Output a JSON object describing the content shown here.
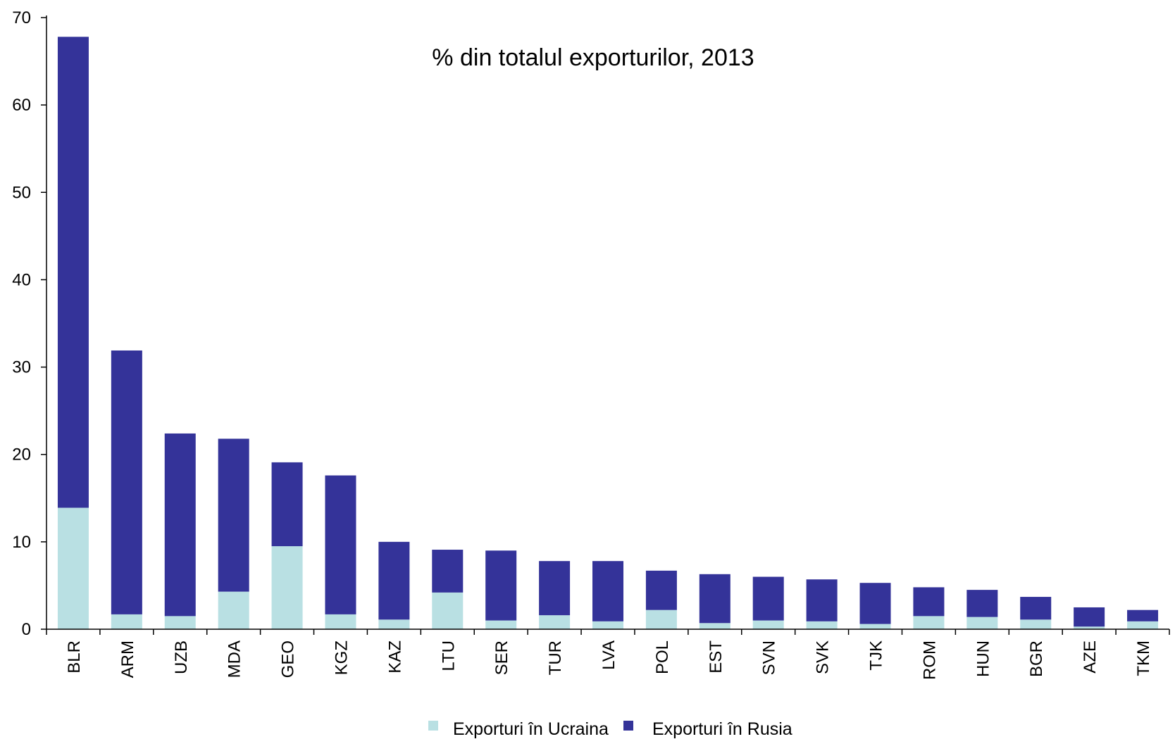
{
  "chart_data": {
    "type": "bar",
    "stacked": true,
    "title": "% din totalul exporturilor, 2013",
    "xlabel": "",
    "ylabel": "",
    "ylim": [
      0,
      70
    ],
    "yticks": [
      0,
      10,
      20,
      30,
      40,
      50,
      60,
      70
    ],
    "grid": false,
    "legend_position": "bottom",
    "categories": [
      "BLR",
      "ARM",
      "UZB",
      "MDA",
      "GEO",
      "KGZ",
      "KAZ",
      "LTU",
      "SER",
      "TUR",
      "LVA",
      "POL",
      "EST",
      "SVN",
      "SVK",
      "TJK",
      "ROM",
      "HUN",
      "BGR",
      "AZE",
      "TKM"
    ],
    "series": [
      {
        "name": "Exporturi în Ucraina",
        "color": "#b9e0e3",
        "values": [
          13.9,
          1.7,
          1.5,
          4.3,
          9.5,
          1.7,
          1.1,
          4.2,
          1.0,
          1.6,
          0.9,
          2.2,
          0.7,
          1.0,
          0.9,
          0.6,
          1.5,
          1.4,
          1.1,
          0.3,
          0.9
        ]
      },
      {
        "name": "Exporturi în Rusia",
        "color": "#343399",
        "values": [
          53.9,
          30.2,
          20.9,
          17.5,
          9.6,
          15.9,
          8.9,
          4.9,
          8.0,
          6.2,
          6.9,
          4.5,
          5.6,
          5.0,
          4.8,
          4.7,
          3.3,
          3.1,
          2.6,
          2.2,
          1.3
        ]
      }
    ]
  }
}
